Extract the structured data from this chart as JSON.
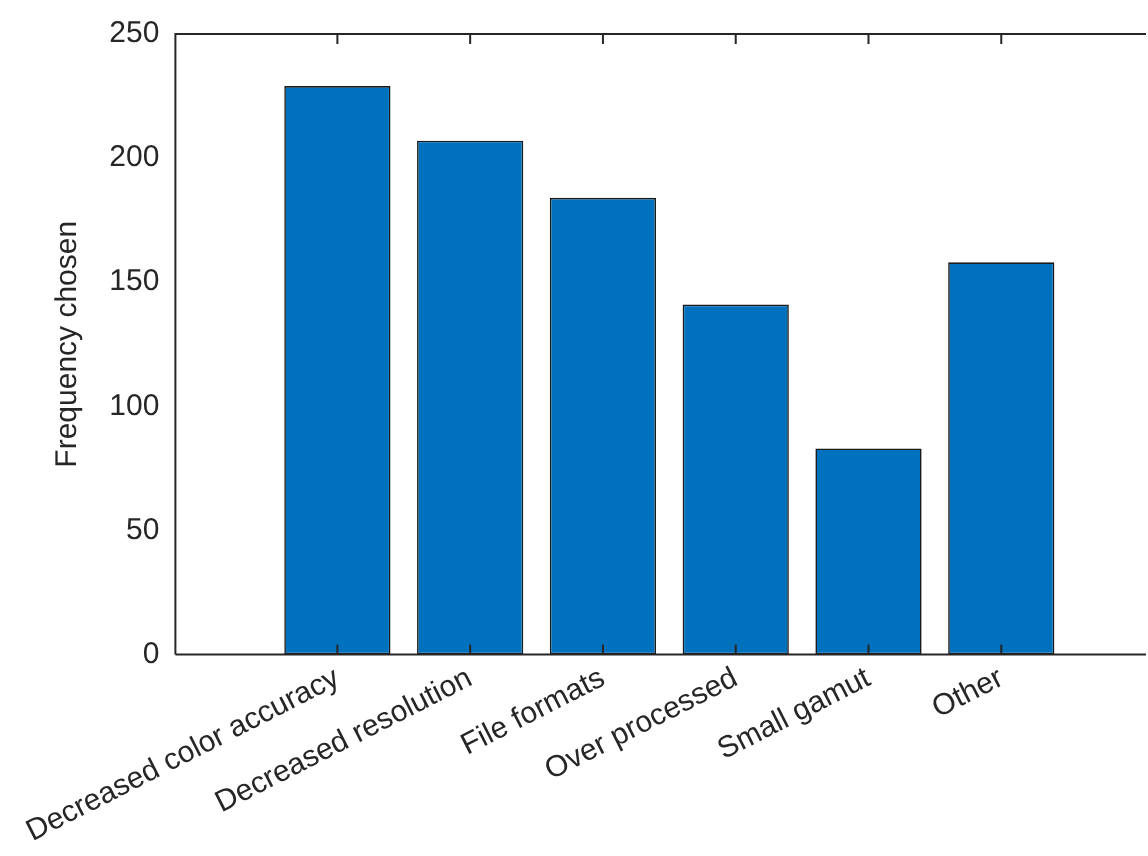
{
  "chart_data": {
    "type": "bar",
    "ylabel": "Frequency chosen",
    "categories": [
      "Decreased color accuracy",
      "Decreased resolution",
      "File formats",
      "Over processed",
      "Small gamut",
      "Other"
    ],
    "values": [
      229,
      207,
      184,
      141,
      83,
      158
    ],
    "color": "#0072bd",
    "ylim": [
      0,
      250
    ],
    "yticks": [
      0,
      50,
      100,
      150,
      200,
      250
    ],
    "grid": false,
    "legend": false
  }
}
